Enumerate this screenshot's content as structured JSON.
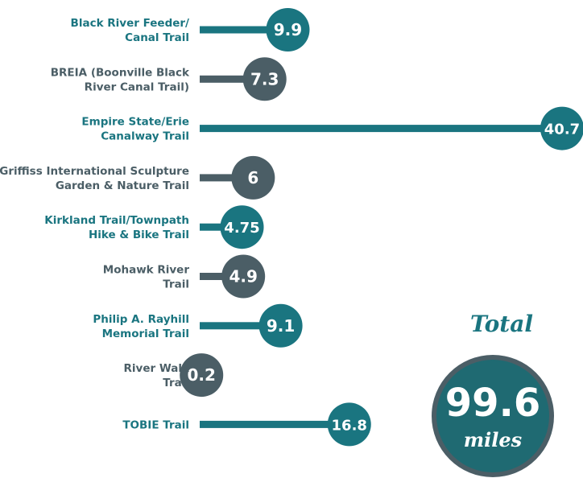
{
  "chart_data": {
    "type": "bar",
    "orientation": "horizontal",
    "categories": [
      [
        "Black River Feeder/",
        "Canal Trail"
      ],
      [
        "BREIA (Boonville Black",
        "River Canal Trail)"
      ],
      [
        "Empire State/Erie",
        "Canalway Trail"
      ],
      [
        "Griffiss International Sculpture",
        "Garden & Nature Trail"
      ],
      [
        "Kirkland Trail/Townpath",
        "Hike & Bike Trail"
      ],
      [
        "Mohawk River",
        "Trail"
      ],
      [
        "Philip A. Rayhill",
        "Memorial Trail"
      ],
      [
        "River Walk",
        "Trail"
      ],
      [
        "TOBIE Trail"
      ]
    ],
    "values": [
      9.9,
      7.3,
      40.7,
      6,
      4.75,
      4.9,
      9.1,
      0.2,
      16.8
    ],
    "value_labels": [
      "9.9",
      "7.3",
      "40.7",
      "6",
      "4.75",
      "4.9",
      "9.1",
      "0.2",
      "16.8"
    ],
    "bar_colors": [
      "#1a7580",
      "#4b5e66",
      "#1a7580",
      "#4b5e66",
      "#1a7580",
      "#4b5e66",
      "#1a7580",
      "#4b5e66",
      "#1a7580"
    ],
    "xlim": [
      0,
      40.7
    ],
    "grid": false,
    "legend": "none"
  },
  "total": {
    "title": "Total",
    "value": "99.6",
    "unit": "miles"
  },
  "colors": {
    "teal": "#1a7580",
    "slate": "#4b5e66",
    "total_fill": "#1f6a72",
    "total_ring": "#4b5e66",
    "total_title": "#1a7580"
  }
}
